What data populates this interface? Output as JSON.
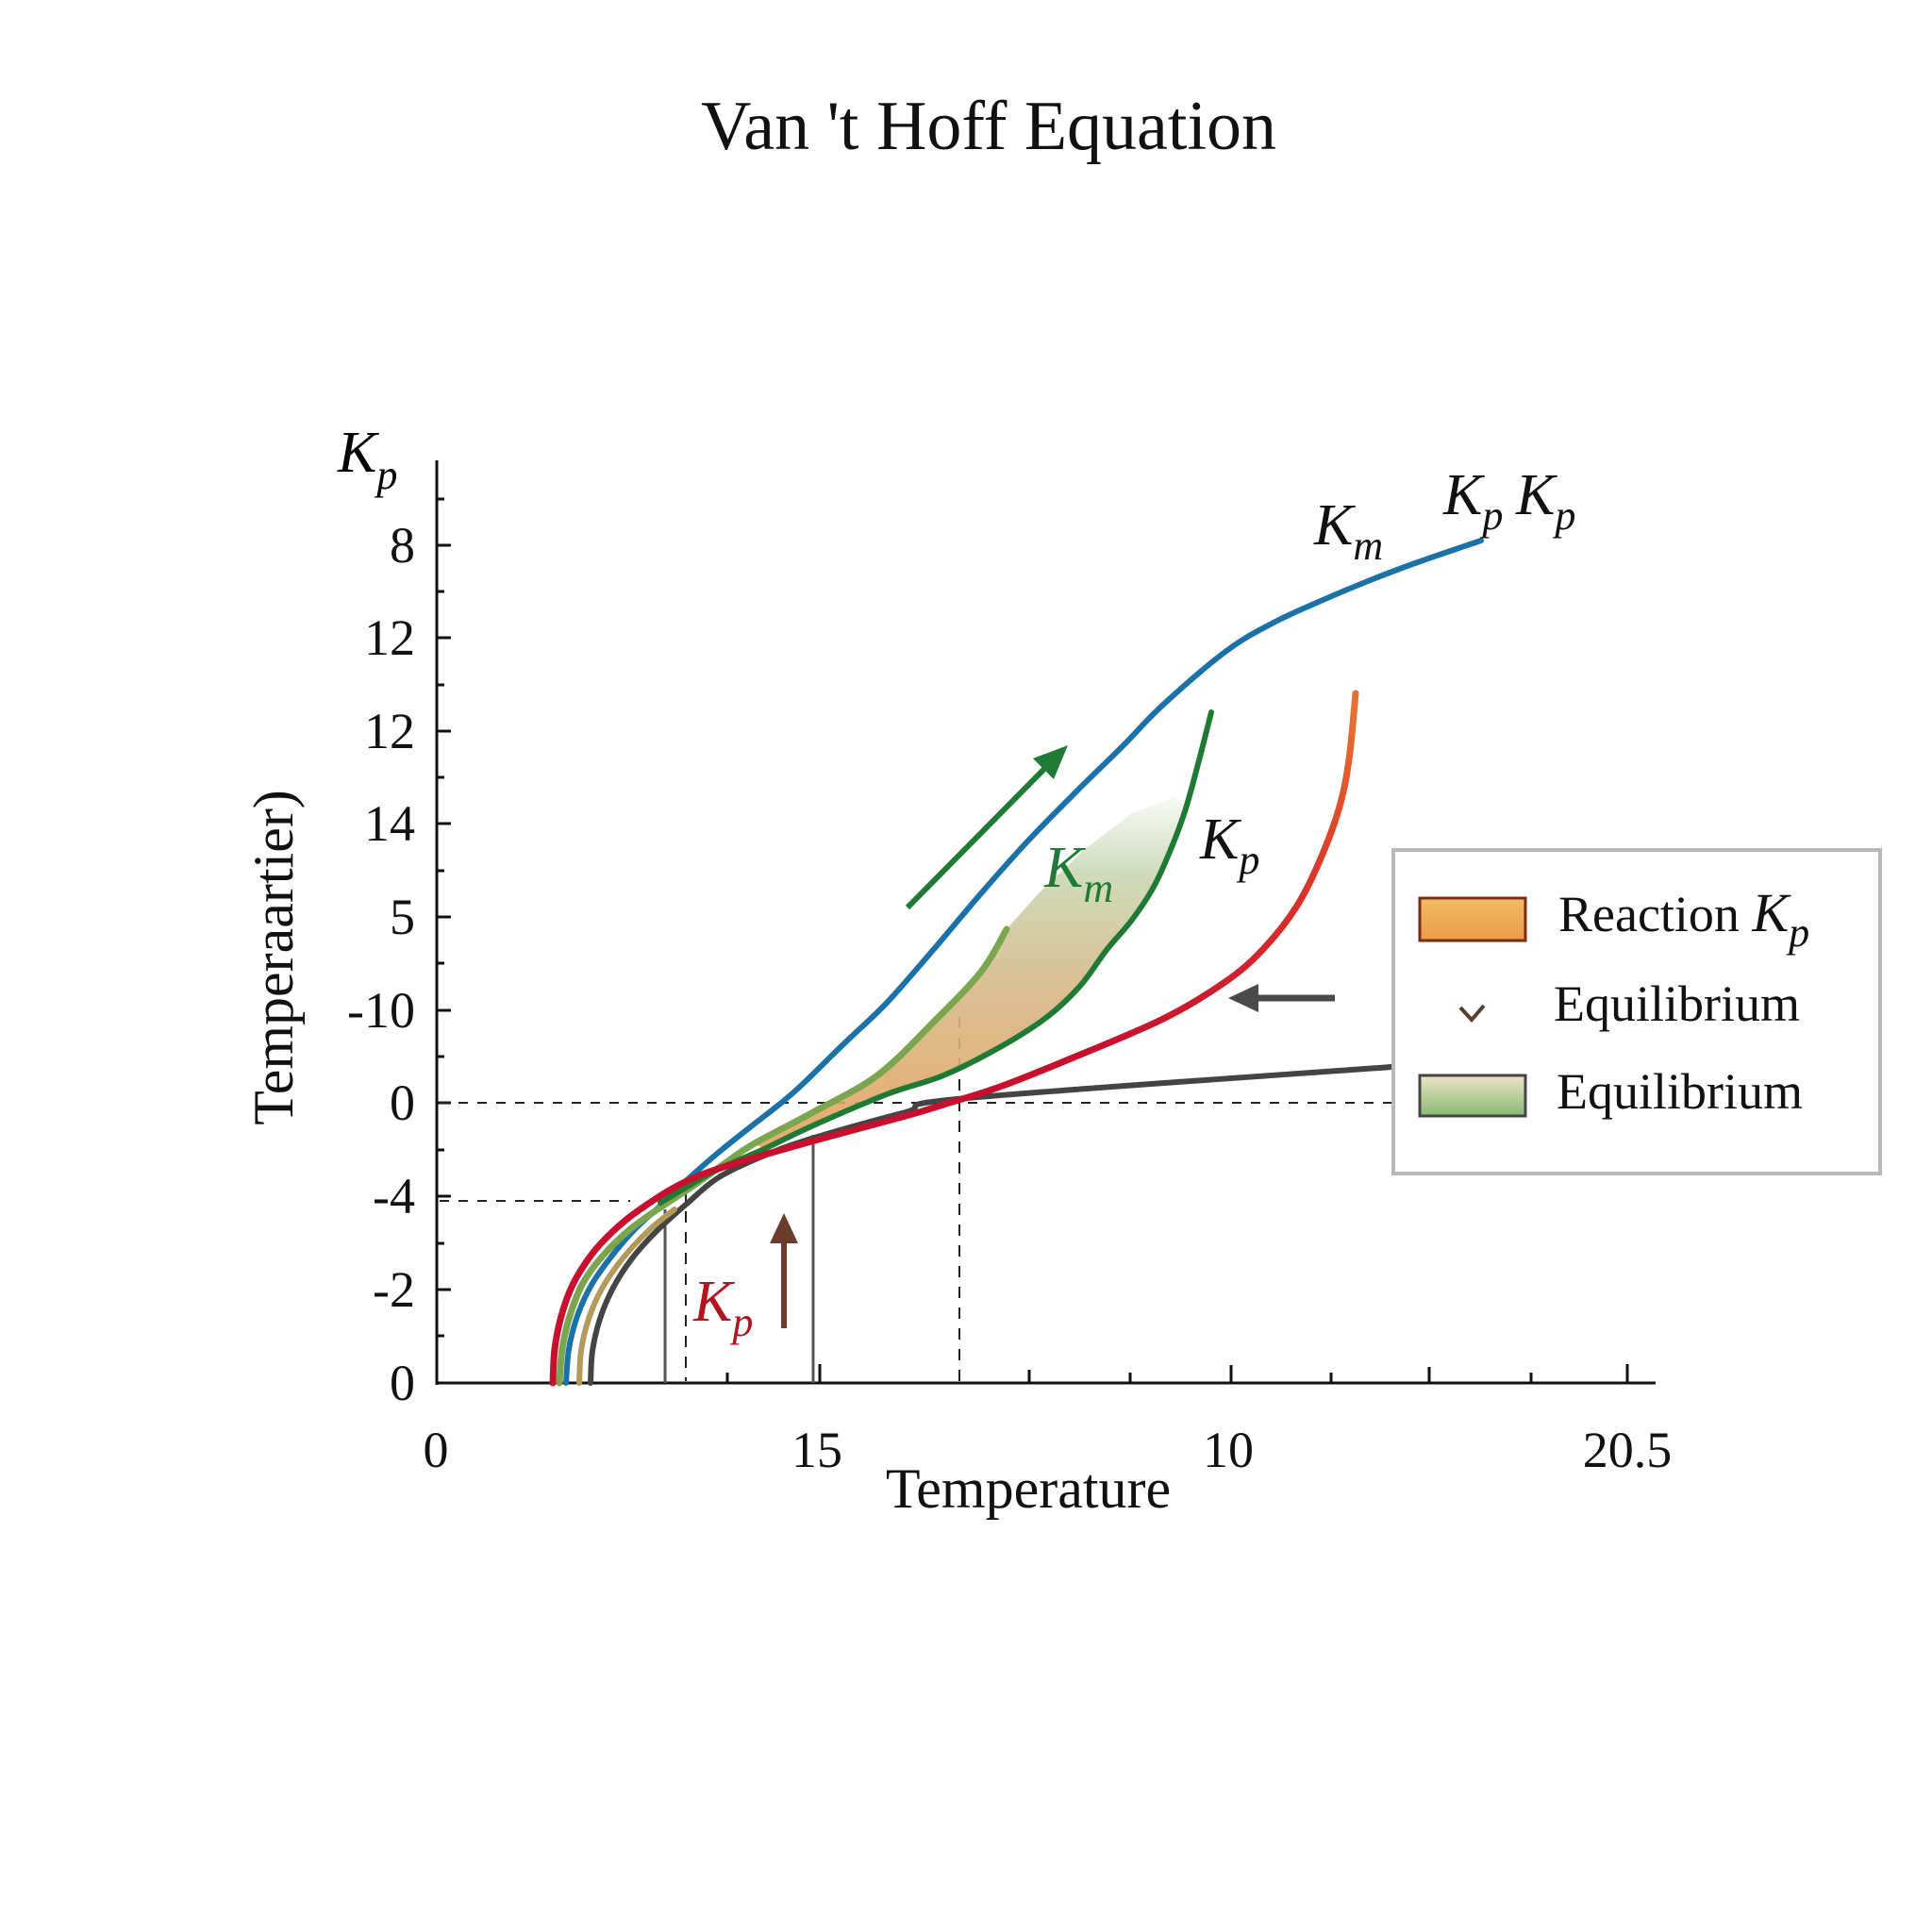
{
  "title": "Van 't Hoff Equation",
  "axes": {
    "y_top_label": {
      "main": "K",
      "sub": "p"
    },
    "y_title": "Temperaartier)",
    "x_title": "Temperature",
    "y_tick_labels": [
      "8",
      "12",
      "12",
      "14",
      "5",
      "-10",
      "0",
      "-4",
      "-2",
      "0"
    ],
    "x_tick_labels": [
      "0",
      "15",
      "10",
      "20.5"
    ]
  },
  "annotations": {
    "top_km": {
      "main": "K",
      "sub": "m"
    },
    "top_kp_1": {
      "main": "K",
      "sub": "p"
    },
    "top_kp_2": {
      "main": "K",
      "sub": "p"
    },
    "green_km": {
      "main": "K",
      "sub": "m"
    },
    "mid_kp": {
      "main": "K",
      "sub": "p"
    },
    "red_kp": {
      "main": "K",
      "sub": "p"
    }
  },
  "legend": {
    "items": [
      {
        "label": "Reaction ",
        "math_main": "K",
        "math_sub": "p",
        "swatch": "orange-gradient-box"
      },
      {
        "label": "Equilibrium",
        "swatch": "chevron-marker"
      },
      {
        "label": "Equilibrium",
        "swatch": "green-gradient-box"
      }
    ]
  },
  "colors": {
    "blue": "#1b72a8",
    "dark_green": "#1f7a35",
    "light_green": "#7ba54f",
    "red": "#c8102e",
    "orange": "#e8692e",
    "gray": "#444444",
    "tan": "#b39a5a",
    "brown_arrow": "#6b3b2c"
  },
  "chart_data": {
    "type": "line",
    "title": "Van 't Hoff Equation",
    "xlabel": "Temperature",
    "ylabel": "Temperaartier)",
    "y_axis_top_label": "Kp",
    "x_tick_labels": [
      "0",
      "15",
      "10",
      "20.5"
    ],
    "y_tick_labels": [
      "8",
      "12",
      "12",
      "14",
      "5",
      "-10",
      "0",
      "-4",
      "-2",
      "0"
    ],
    "grid": false,
    "legend_position": "right",
    "legend": [
      "Reaction Kp",
      "Equilibrium",
      "Equilibrium"
    ],
    "note": "Series points are given in figure pixel coordinates (x right, y down) because the axis tick labels are non-monotonic.",
    "series": [
      {
        "name": "Km (blue)",
        "color": "#1b72a8",
        "points": [
          [
            600,
            1466
          ],
          [
            603,
            1430
          ],
          [
            612,
            1395
          ],
          [
            627,
            1362
          ],
          [
            648,
            1332
          ],
          [
            672,
            1304
          ],
          [
            700,
            1278
          ],
          [
            727,
            1252
          ],
          [
            760,
            1223
          ],
          [
            795,
            1195
          ],
          [
            827,
            1170
          ],
          [
            850,
            1150
          ],
          [
            895,
            1106
          ],
          [
            940,
            1063
          ],
          [
            990,
            1006
          ],
          [
            1040,
            947
          ],
          [
            1090,
            891
          ],
          [
            1143,
            837
          ],
          [
            1190,
            791
          ],
          [
            1233,
            747
          ],
          [
            1300,
            690
          ],
          [
            1350,
            660
          ],
          [
            1400,
            637
          ],
          [
            1450,
            616
          ],
          [
            1500,
            597
          ],
          [
            1570,
            573
          ]
        ]
      },
      {
        "name": "Km (dark green)",
        "color": "#1f7a35",
        "points": [
          [
            700,
            1275
          ],
          [
            730,
            1257
          ],
          [
            760,
            1240
          ],
          [
            810,
            1218
          ],
          [
            860,
            1194
          ],
          [
            940,
            1160
          ],
          [
            1000,
            1140
          ],
          [
            1060,
            1110
          ],
          [
            1110,
            1078
          ],
          [
            1145,
            1045
          ],
          [
            1173,
            1007
          ],
          [
            1200,
            975
          ],
          [
            1223,
            940
          ],
          [
            1242,
            898
          ],
          [
            1257,
            857
          ],
          [
            1271,
            806
          ],
          [
            1284,
            755
          ]
        ]
      },
      {
        "name": "Equilibrium (light green)",
        "color": "#7ba54f",
        "points": [
          [
            593,
            1466
          ],
          [
            596,
            1430
          ],
          [
            604,
            1395
          ],
          [
            618,
            1360
          ],
          [
            640,
            1330
          ],
          [
            668,
            1303
          ],
          [
            700,
            1280
          ],
          [
            735,
            1257
          ],
          [
            770,
            1232
          ],
          [
            800,
            1212
          ],
          [
            860,
            1180
          ],
          [
            930,
            1140
          ],
          [
            990,
            1083
          ],
          [
            1040,
            1030
          ],
          [
            1067,
            985
          ]
        ]
      },
      {
        "name": "Reaction Kp (red to orange)",
        "color": "#c8102e",
        "points": [
          [
            586,
            1466
          ],
          [
            588,
            1430
          ],
          [
            595,
            1395
          ],
          [
            607,
            1362
          ],
          [
            627,
            1330
          ],
          [
            650,
            1305
          ],
          [
            677,
            1283
          ],
          [
            720,
            1256
          ],
          [
            767,
            1237
          ],
          [
            860,
            1210
          ],
          [
            960,
            1183
          ],
          [
            1000,
            1171
          ],
          [
            1060,
            1152
          ],
          [
            1133,
            1123
          ],
          [
            1233,
            1080
          ],
          [
            1300,
            1040
          ],
          [
            1340,
            1005
          ],
          [
            1375,
            960
          ],
          [
            1400,
            910
          ],
          [
            1420,
            855
          ],
          [
            1430,
            805
          ],
          [
            1437,
            735
          ]
        ]
      },
      {
        "name": "Baseline (dark gray)",
        "color": "#444444",
        "points": [
          [
            626,
            1466
          ],
          [
            628,
            1432
          ],
          [
            636,
            1398
          ],
          [
            650,
            1365
          ],
          [
            670,
            1334
          ],
          [
            696,
            1305
          ],
          [
            728,
            1276
          ],
          [
            762,
            1248
          ],
          [
            810,
            1225
          ],
          [
            860,
            1207
          ],
          [
            960,
            1179
          ],
          [
            1025,
            1164
          ],
          [
            1475,
            1131
          ]
        ]
      },
      {
        "name": "Tan",
        "color": "#b39a5a",
        "points": [
          [
            614,
            1466
          ],
          [
            616,
            1432
          ],
          [
            624,
            1398
          ],
          [
            638,
            1366
          ],
          [
            660,
            1334
          ],
          [
            688,
            1304
          ],
          [
            715,
            1282
          ]
        ]
      }
    ],
    "shaded_region": {
      "between": [
        "Equilibrium (light green)",
        "Km (dark green)"
      ],
      "gradient": [
        "#e3a35e",
        "#c9d8b4",
        "#ffffff"
      ]
    },
    "reference_lines": [
      {
        "type": "horizontal-dashed",
        "y_label": "0"
      },
      {
        "type": "horizontal-dashed",
        "y_label": "-4"
      },
      {
        "type": "vertical-dashed"
      },
      {
        "type": "vertical-dashed"
      },
      {
        "type": "vertical-solid"
      },
      {
        "type": "vertical-solid"
      }
    ]
  }
}
